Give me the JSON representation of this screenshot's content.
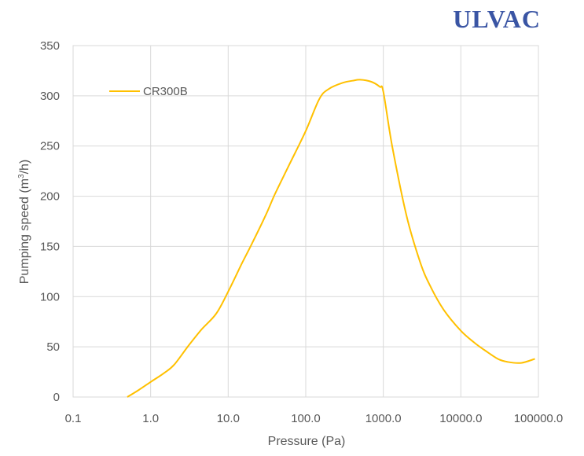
{
  "brand": {
    "logo_text": "ULVAC",
    "logo_color": "#3a55a4"
  },
  "chart_data": {
    "type": "line",
    "xlabel": "Pressure (Pa)",
    "ylabel_prefix": "Pumping speed (m",
    "ylabel_sup": "3",
    "ylabel_suffix": "/h)",
    "x_scale": "log",
    "xlim": [
      0.1,
      100000
    ],
    "ylim": [
      0,
      350
    ],
    "x_ticks": [
      0.1,
      1,
      10,
      100,
      1000,
      10000,
      100000
    ],
    "x_tick_labels": [
      "0.1",
      "1.0",
      "10.0",
      "100.0",
      "1000.0",
      "10000.0",
      "100000.0"
    ],
    "y_ticks": [
      0,
      50,
      100,
      150,
      200,
      250,
      300,
      350
    ],
    "y_tick_labels": [
      "0",
      "50",
      "100",
      "150",
      "200",
      "250",
      "300",
      "350"
    ],
    "grid": true,
    "legend_position": "top-left",
    "series": [
      {
        "name": "CR300B",
        "color": "#ffc000",
        "x": [
          0.5,
          0.7,
          1.0,
          1.5,
          2.0,
          3.0,
          4.5,
          7.0,
          10,
          15,
          20,
          30,
          40,
          60,
          100,
          150,
          200,
          300,
          400,
          500,
          700,
          900,
          1000,
          1300,
          2000,
          3000,
          4000,
          6000,
          10000,
          15000,
          20000,
          30000,
          40000,
          60000,
          90000
        ],
        "y": [
          0,
          7,
          15,
          24,
          32,
          50,
          67,
          83,
          105,
          133,
          152,
          180,
          202,
          230,
          265,
          297,
          307,
          313,
          315,
          316,
          314,
          309,
          304,
          250,
          180,
          134,
          111,
          87,
          66,
          54,
          47,
          38,
          35,
          34,
          38
        ]
      }
    ]
  }
}
